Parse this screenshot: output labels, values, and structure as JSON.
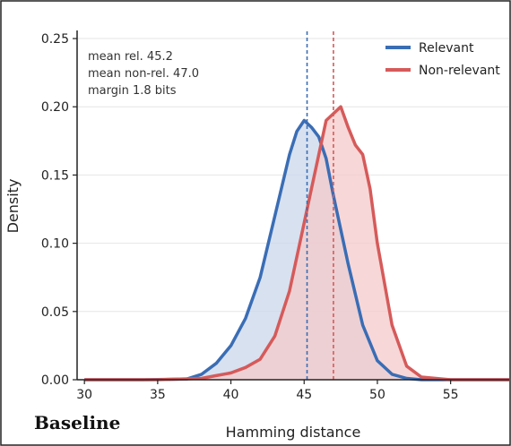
{
  "chart_data": {
    "type": "area",
    "title": "",
    "xlabel": "Hamming distance",
    "ylabel": "Density",
    "xlim": [
      29.5,
      59
    ],
    "ylim": [
      0,
      0.252
    ],
    "x_ticks": [
      "30",
      "35",
      "40",
      "45",
      "50",
      "55"
    ],
    "y_ticks": [
      "0.00",
      "0.05",
      "0.10",
      "0.15",
      "0.20",
      "0.25"
    ],
    "grid": "horizontal",
    "legend_position": "top-right",
    "series": [
      {
        "name": "Relevant",
        "color": "#3a6db5",
        "fill": "#c9d7eb",
        "mean": 45.2,
        "x": [
          30,
          34,
          37,
          38,
          39,
          40,
          41,
          42,
          43,
          44,
          44.5,
          45,
          45.5,
          46,
          46.5,
          47,
          48,
          49,
          50,
          51,
          52,
          53,
          55,
          59
        ],
        "y": [
          0.0,
          0.0,
          0.0005,
          0.004,
          0.012,
          0.025,
          0.045,
          0.075,
          0.12,
          0.165,
          0.182,
          0.19,
          0.185,
          0.178,
          0.162,
          0.135,
          0.085,
          0.04,
          0.014,
          0.004,
          0.001,
          0.0,
          0.0,
          0.0
        ]
      },
      {
        "name": "Non-relevant",
        "color": "#d65a5a",
        "fill": "#f4c9c9",
        "mean": 47.0,
        "x": [
          30,
          35,
          38,
          39,
          40,
          41,
          42,
          43,
          44,
          45,
          45.5,
          46,
          46.5,
          47,
          47.5,
          48,
          48.5,
          49,
          49.5,
          50,
          51,
          52,
          53,
          55,
          59
        ],
        "y": [
          0.0,
          0.0,
          0.001,
          0.003,
          0.005,
          0.009,
          0.015,
          0.032,
          0.065,
          0.115,
          0.14,
          0.165,
          0.19,
          0.195,
          0.2,
          0.185,
          0.172,
          0.165,
          0.14,
          0.1,
          0.04,
          0.01,
          0.002,
          0.0,
          0.0
        ]
      }
    ],
    "annotations": [
      "mean rel.  45.2",
      "mean non-rel.  47.0",
      "margin  1.8 bits"
    ]
  },
  "panel_label": "Baseline"
}
